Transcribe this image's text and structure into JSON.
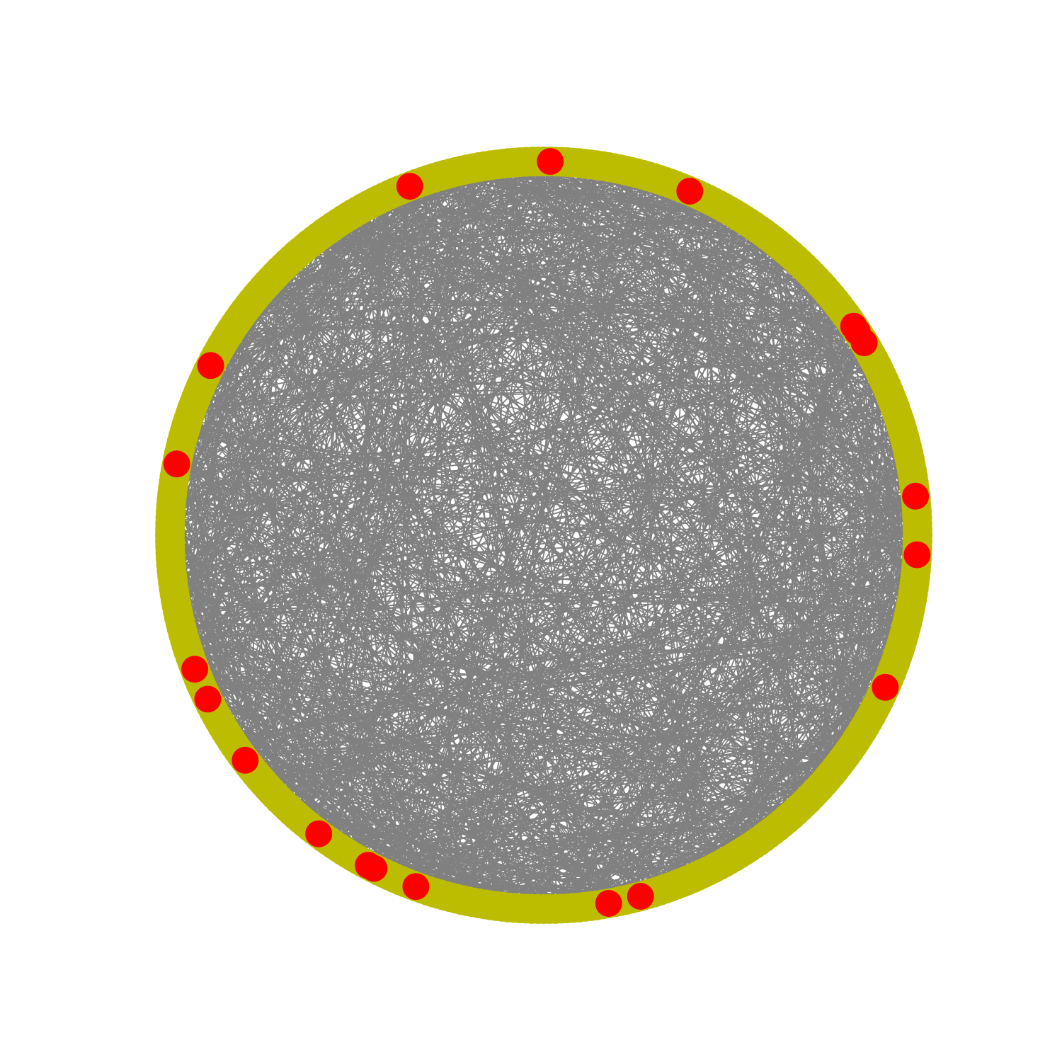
{
  "graph": {
    "layout": "circular",
    "edge_color": "#808080",
    "node_color": "#bcbd00",
    "highlight_color": "#ff0000",
    "background": "#ffffff",
    "approx_node_count": 400,
    "approx_edge_count": 1800,
    "random_seed": 7,
    "highlighted_node_angles_deg": [
      -89,
      -67,
      -111,
      -34,
      -33,
      -31,
      -6,
      3,
      24,
      75,
      80,
      110,
      117,
      118,
      127,
      143,
      154,
      159,
      191,
      207
    ]
  }
}
